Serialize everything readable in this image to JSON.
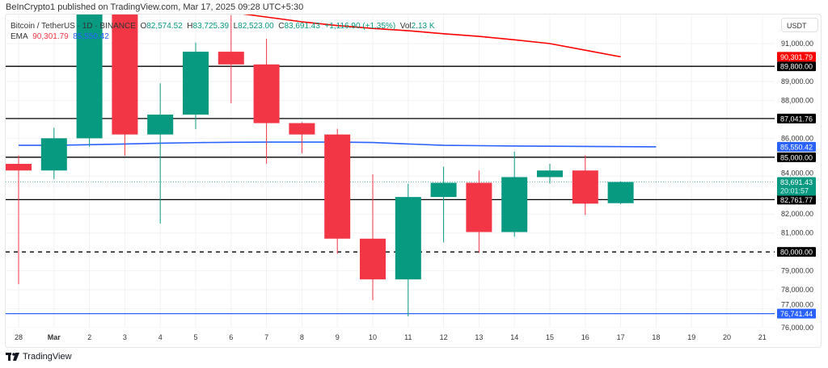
{
  "header": {
    "published": "BeInCrypto1 published on TradingView.com, Mar 17, 2025 09:28 UTC+5:30"
  },
  "legend": {
    "symbol": "Bitcoin / TetherUS · 1D · BINANCE",
    "o_label": "O",
    "o": "82,574.52",
    "h_label": "H",
    "h": "83,725.39",
    "l_label": "L",
    "l": "82,523.00",
    "c_label": "C",
    "c": "83,691.43",
    "change": "+1,116.90 (+1.35%)",
    "vol_label": "Vol",
    "vol": "2.13 K",
    "ema_label": "EMA",
    "ema1": "90,301.79",
    "ema2": "85,550.42"
  },
  "axis": {
    "currency": "USDT",
    "ticks": [
      "91,000.00",
      "89,000.00",
      "88,000.00",
      "86,000.00",
      "84,000.00",
      "82,000.00",
      "81,000.00",
      "79,000.00",
      "78,000.00",
      "77,000.00",
      "76,000.00"
    ],
    "tick_values": [
      91000,
      89000,
      88000,
      86000,
      84000,
      82000,
      81000,
      79000,
      78000,
      77000,
      76000
    ],
    "dates": [
      "28",
      "Mar",
      "2",
      "3",
      "4",
      "5",
      "6",
      "7",
      "8",
      "9",
      "10",
      "11",
      "12",
      "13",
      "14",
      "15",
      "16",
      "17",
      "18",
      "19",
      "20",
      "21"
    ]
  },
  "colors": {
    "up": "#089981",
    "down": "#f23645",
    "ema_slow": "#ff0000",
    "ema_fast": "#2962ff"
  },
  "chart_data": {
    "type": "candlestick",
    "x": [
      "Feb 28",
      "Mar 1",
      "Mar 2",
      "Mar 3",
      "Mar 4",
      "Mar 5",
      "Mar 6",
      "Mar 7",
      "Mar 8",
      "Mar 9",
      "Mar 10",
      "Mar 11",
      "Mar 12",
      "Mar 13",
      "Mar 14",
      "Mar 15",
      "Mar 16",
      "Mar 17"
    ],
    "ohlc": [
      [
        84650,
        85100,
        78300,
        84300
      ],
      [
        84300,
        86550,
        83850,
        86000
      ],
      [
        86000,
        95000,
        85550,
        94270
      ],
      [
        94270,
        95000,
        85080,
        86200
      ],
      [
        86200,
        88900,
        81500,
        87250
      ],
      [
        87250,
        91050,
        86480,
        90570
      ],
      [
        90570,
        92500,
        87850,
        89900
      ],
      [
        89900,
        91250,
        84650,
        86800
      ],
      [
        86800,
        86850,
        85200,
        86200
      ],
      [
        86200,
        86500,
        79900,
        80700
      ],
      [
        80700,
        84100,
        77450,
        78550
      ],
      [
        78550,
        83600,
        76600,
        82900
      ],
      [
        82900,
        84500,
        80500,
        83650
      ],
      [
        83650,
        84300,
        79950,
        81050
      ],
      [
        81050,
        85300,
        80800,
        83950
      ],
      [
        83950,
        84650,
        83600,
        84300
      ],
      [
        84300,
        85100,
        81950,
        82550
      ],
      [
        82574.52,
        83725.39,
        82523.0,
        83691.43
      ]
    ],
    "ema_slow": [
      null,
      null,
      null,
      null,
      null,
      null,
      92650,
      92400,
      92150,
      91950,
      91800,
      91680,
      91520,
      91380,
      91200,
      91000,
      90650,
      90301.79
    ],
    "ema_fast": [
      85630,
      85660,
      85700,
      85740,
      85770,
      85790,
      85800,
      85800,
      85800,
      85780,
      85700,
      85630,
      85610,
      85590,
      85580,
      85570,
      85560,
      85550.42
    ],
    "levels": [
      {
        "value": 89800,
        "label": "89,800.00",
        "style": "solid",
        "color": "#000000"
      },
      {
        "value": 87041.76,
        "label": "87,041.76",
        "style": "solid",
        "color": "#000000"
      },
      {
        "value": 85000,
        "label": "85,000.00",
        "style": "solid",
        "color": "#000000"
      },
      {
        "value": 82761.77,
        "label": "82,761.77",
        "style": "solid",
        "color": "#000000"
      },
      {
        "value": 80000,
        "label": "80,000.00",
        "style": "dashed",
        "color": "#000000"
      },
      {
        "value": 76741.44,
        "label": "76,741.44",
        "style": "solid",
        "color": "#2962ff"
      }
    ],
    "badges": {
      "ema_slow": "90,301.79",
      "ema_fast": "85,550.42",
      "last": "83,691.43",
      "countdown": "20:01:57"
    },
    "ylim": [
      75700,
      92700
    ]
  },
  "footer": {
    "brand": "TradingView"
  }
}
